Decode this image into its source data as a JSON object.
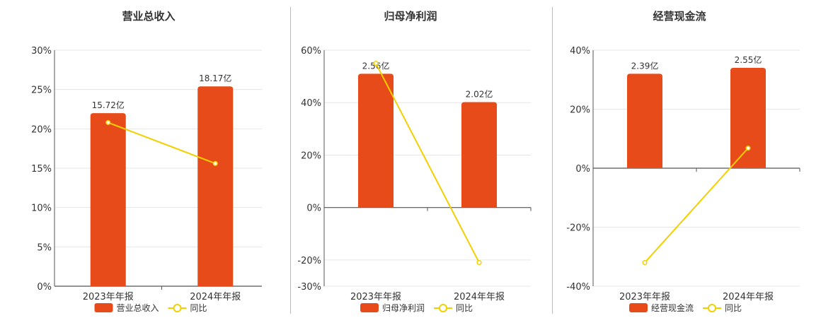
{
  "colors": {
    "bar": "#e84b1a",
    "line": "#f2d000",
    "grid": "#e6e6e6",
    "axis": "#555555",
    "divider": "#bbbbbb"
  },
  "chart_data": [
    {
      "type": "bar",
      "title": "营业总收入",
      "categories": [
        "2023年年报",
        "2024年年报"
      ],
      "ylim": [
        0,
        30
      ],
      "yticks": [
        0,
        5,
        10,
        15,
        20,
        25,
        30
      ],
      "tick_suffix": "%",
      "series": [
        {
          "name": "营业总收入",
          "kind": "bar",
          "values": [
            22,
            25.4
          ],
          "labels": [
            "15.72亿",
            "18.17亿"
          ]
        },
        {
          "name": "同比",
          "kind": "line",
          "values": [
            20.8,
            15.6
          ]
        }
      ]
    },
    {
      "type": "bar",
      "title": "归母净利润",
      "categories": [
        "2023年年报",
        "2024年年报"
      ],
      "ylim": [
        -30,
        60
      ],
      "yticks": [
        -30,
        -20,
        0,
        20,
        40,
        60
      ],
      "tick_suffix": "%",
      "series": [
        {
          "name": "归母净利润",
          "kind": "bar",
          "values": [
            51,
            40.2
          ],
          "labels": [
            "2.56亿",
            "2.02亿"
          ]
        },
        {
          "name": "同比",
          "kind": "line",
          "values": [
            55,
            -21
          ]
        }
      ]
    },
    {
      "type": "bar",
      "title": "经营现金流",
      "categories": [
        "2023年年报",
        "2024年年报"
      ],
      "ylim": [
        -40,
        40
      ],
      "yticks": [
        -40,
        -20,
        0,
        20,
        40
      ],
      "tick_suffix": "%",
      "series": [
        {
          "name": "经营现金流",
          "kind": "bar",
          "values": [
            32,
            34
          ],
          "labels": [
            "2.39亿",
            "2.55亿"
          ]
        },
        {
          "name": "同比",
          "kind": "line",
          "values": [
            -32,
            6.8
          ]
        }
      ]
    }
  ]
}
